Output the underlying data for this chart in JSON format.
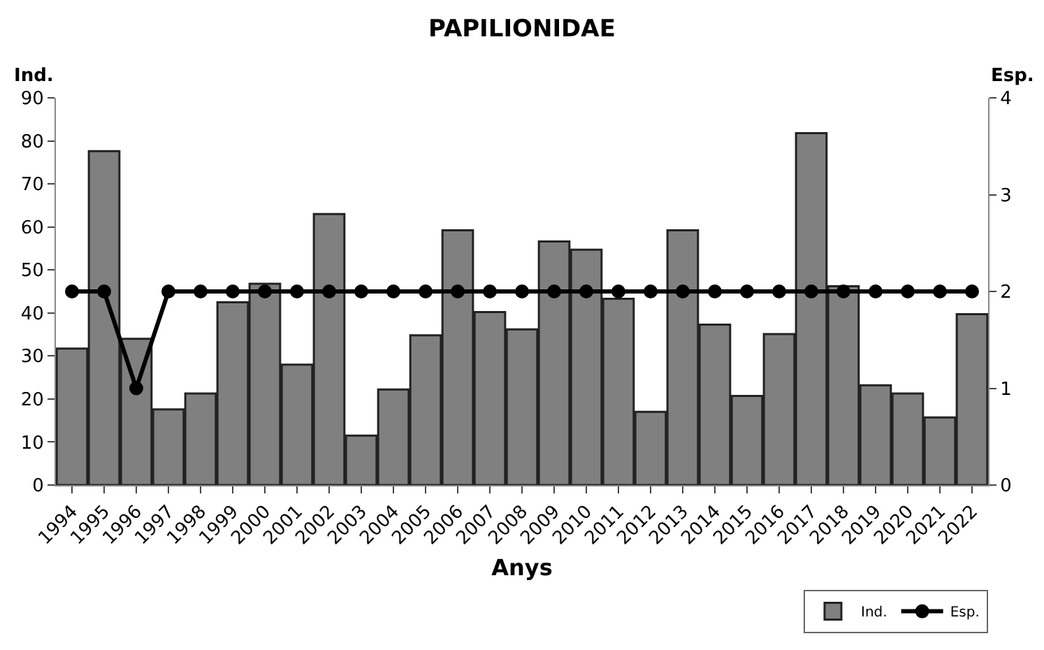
{
  "chart_data": {
    "type": "bar",
    "title": "PAPILIONIDAE",
    "xlabel": "Anys",
    "ylabel": "Ind.",
    "y2label": "Esp.",
    "categories": [
      "1994",
      "1995",
      "1996",
      "1997",
      "1998",
      "1999",
      "2000",
      "2001",
      "2002",
      "2003",
      "2004",
      "2005",
      "2006",
      "2007",
      "2008",
      "2009",
      "2010",
      "2011",
      "2012",
      "2013",
      "2014",
      "2015",
      "2016",
      "2017",
      "2018",
      "2019",
      "2020",
      "2021",
      "2022"
    ],
    "series": [
      {
        "name": "Ind.",
        "color": "#808080",
        "values": [
          31.7,
          77.6,
          34,
          17.6,
          21.3,
          42.5,
          46.8,
          28,
          63,
          11.5,
          22.2,
          34.8,
          59.2,
          40.2,
          36.2,
          56.6,
          54.7,
          43.3,
          17,
          59.2,
          37.3,
          20.7,
          35.1,
          81.8,
          46.2,
          23.2,
          21.3,
          15.7,
          39.7
        ]
      },
      {
        "name": "Esp.",
        "type": "line",
        "axis": "y2",
        "color": "#000000",
        "marker": "circle",
        "values": [
          2,
          2,
          1,
          2,
          2,
          2,
          2,
          2,
          2,
          2,
          2,
          2,
          2,
          2,
          2,
          2,
          2,
          2,
          2,
          2,
          2,
          2,
          2,
          2,
          2,
          2,
          2,
          2,
          2
        ]
      }
    ],
    "ylim": [
      0,
      90
    ],
    "yticks": [
      0,
      10,
      20,
      30,
      40,
      50,
      60,
      70,
      80,
      90
    ],
    "y2lim": [
      0,
      4
    ],
    "y2ticks": [
      0,
      1,
      2,
      3,
      4
    ],
    "legend": "bottom right"
  }
}
